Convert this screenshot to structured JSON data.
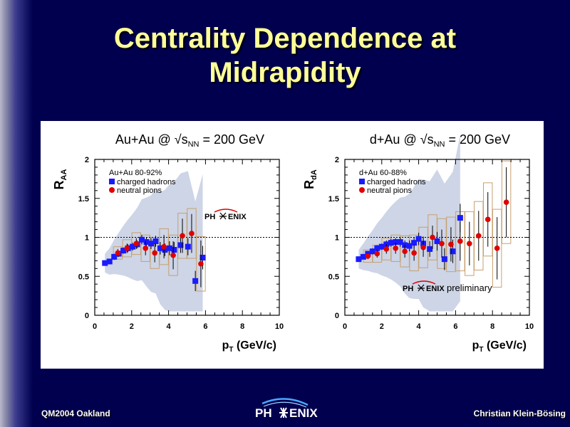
{
  "slide": {
    "title_line1": "Centrality Dependence at",
    "title_line2": "Midrapidity",
    "footer_left": "QM2004 Oakland",
    "footer_right": "Christian Klein-Bösing",
    "footer_logo_left": "PH",
    "footer_logo_right": "ENIX"
  },
  "colors": {
    "background": "#00004f",
    "title": "#ffff99",
    "charged": "#1a1aff",
    "neutral": "#e00000",
    "band": "#c8d0e4",
    "syst_box": "#c8a070"
  },
  "chart_data": [
    {
      "type": "scatter",
      "title": "Au+Au @ √sNN = 200 GeV",
      "title_prefix": "Au+Au @ √s",
      "title_sub": "NN",
      "title_suffix": " = 200 GeV",
      "ylabel": "RAA",
      "ylabel_main": "R",
      "ylabel_sub": "AA",
      "xlabel": "pT (GeV/c)",
      "xlabel_main": "p",
      "xlabel_sub": "T",
      "xlabel_suffix": " (GeV/c)",
      "xlim": [
        0,
        10
      ],
      "ylim": [
        0,
        2
      ],
      "xticks": [
        "0",
        "2",
        "4",
        "6",
        "8",
        "10"
      ],
      "yticks": [
        "0",
        "0.5",
        "1",
        "1.5",
        "2"
      ],
      "reference_line": 1,
      "legend_title": "Au+Au 80-92%",
      "legend_position": "top-left",
      "logo_text_left": "PH",
      "logo_text_right": "ENIX",
      "annotation": "",
      "series": [
        {
          "name": "charged hadrons",
          "marker": "square",
          "x": [
            0.55,
            0.8,
            1.05,
            1.3,
            1.55,
            1.8,
            2.05,
            2.3,
            2.55,
            2.8,
            3.05,
            3.3,
            3.55,
            3.8,
            4.05,
            4.3,
            4.65,
            5.05,
            5.45,
            5.85
          ],
          "y": [
            0.67,
            0.69,
            0.75,
            0.79,
            0.83,
            0.86,
            0.88,
            0.91,
            0.97,
            0.94,
            0.92,
            0.95,
            0.86,
            0.84,
            0.86,
            0.84,
            0.9,
            0.88,
            0.44,
            0.74
          ],
          "err": [
            0.03,
            0.03,
            0.04,
            0.04,
            0.04,
            0.05,
            0.05,
            0.05,
            0.06,
            0.06,
            0.07,
            0.07,
            0.08,
            0.08,
            0.09,
            0.1,
            0.1,
            0.11,
            0.13,
            0.15
          ]
        },
        {
          "name": "neutral pions",
          "marker": "circle",
          "x": [
            1.25,
            1.75,
            2.25,
            2.75,
            3.25,
            3.75,
            4.25,
            4.75,
            5.25,
            5.75
          ],
          "y": [
            0.8,
            0.86,
            0.92,
            0.86,
            0.8,
            0.88,
            0.77,
            1.02,
            1.05,
            0.66
          ],
          "err": [
            0.05,
            0.06,
            0.07,
            0.09,
            0.12,
            0.15,
            0.18,
            0.22,
            0.25,
            0.3
          ]
        }
      ]
    },
    {
      "type": "scatter",
      "title": "d+Au @ √sNN = 200 GeV",
      "title_prefix": "d+Au @ √s",
      "title_sub": "NN",
      "title_suffix": " = 200 GeV",
      "ylabel": "RdA",
      "ylabel_main": "R",
      "ylabel_sub": "dA",
      "xlabel": "pT (GeV/c)",
      "xlabel_main": "p",
      "xlabel_sub": "T",
      "xlabel_suffix": " (GeV/c)",
      "xlim": [
        0,
        10
      ],
      "ylim": [
        0,
        2
      ],
      "xticks": [
        "0",
        "2",
        "4",
        "6",
        "8",
        "10"
      ],
      "yticks": [
        "0",
        "0.5",
        "1",
        "1.5",
        "2"
      ],
      "reference_line": 1,
      "legend_title": "d+Au 60-88%",
      "legend_position": "top-left",
      "logo_text_left": "PH",
      "logo_text_right": "ENIX",
      "annotation": "preliminary",
      "series": [
        {
          "name": "charged hadrons",
          "marker": "square",
          "x": [
            0.75,
            1.0,
            1.25,
            1.5,
            1.75,
            2.0,
            2.25,
            2.5,
            2.75,
            3.0,
            3.25,
            3.5,
            3.75,
            4.0,
            4.25,
            4.6,
            5.0,
            5.4,
            5.85,
            6.25
          ],
          "y": [
            0.72,
            0.75,
            0.79,
            0.82,
            0.86,
            0.88,
            0.91,
            0.93,
            0.94,
            0.94,
            0.9,
            0.89,
            0.93,
            0.98,
            0.92,
            0.85,
            0.95,
            0.72,
            0.82,
            1.25
          ],
          "err": [
            0.03,
            0.03,
            0.03,
            0.04,
            0.04,
            0.04,
            0.05,
            0.05,
            0.05,
            0.06,
            0.06,
            0.07,
            0.07,
            0.08,
            0.09,
            0.1,
            0.12,
            0.14,
            0.15,
            0.18
          ]
        },
        {
          "name": "neutral pions",
          "marker": "circle",
          "x": [
            1.25,
            1.75,
            2.25,
            2.75,
            3.25,
            3.75,
            4.25,
            4.75,
            5.25,
            5.75,
            6.25,
            6.75,
            7.25,
            7.75,
            8.25,
            8.75
          ],
          "y": [
            0.76,
            0.79,
            0.85,
            0.86,
            0.82,
            0.8,
            0.87,
            1.0,
            0.92,
            0.91,
            0.95,
            0.92,
            1.02,
            1.23,
            0.86,
            1.45
          ],
          "err": [
            0.04,
            0.05,
            0.06,
            0.07,
            0.08,
            0.1,
            0.12,
            0.15,
            0.18,
            0.22,
            0.25,
            0.28,
            0.32,
            0.35,
            0.4,
            0.45
          ]
        }
      ]
    }
  ]
}
